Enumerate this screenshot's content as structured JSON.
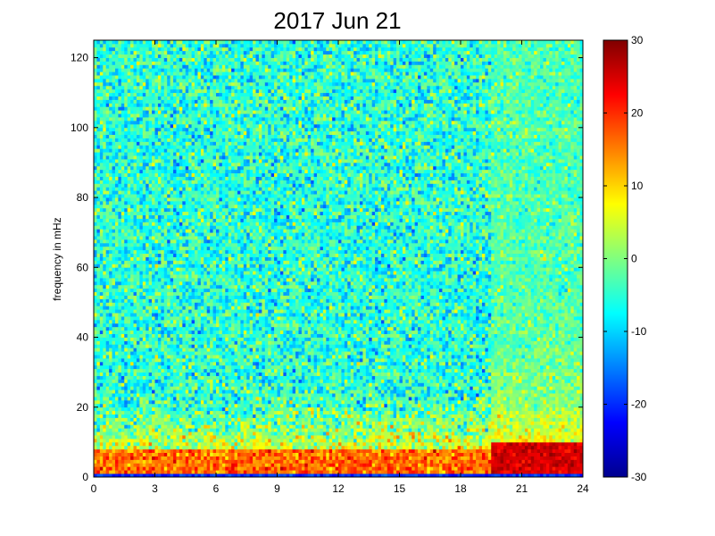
{
  "chart_data": {
    "type": "heatmap",
    "title": "2017 Jun 21",
    "xlabel": "",
    "ylabel": "frequency in mHz",
    "xlim": [
      0,
      24
    ],
    "ylim": [
      0,
      125
    ],
    "x_ticks": [
      "0",
      "3",
      "6",
      "9",
      "12",
      "15",
      "18",
      "21",
      "24"
    ],
    "y_ticks": [
      "0",
      "20",
      "40",
      "60",
      "80",
      "100",
      "120"
    ],
    "colorbar": {
      "colormap": "jet",
      "range": [
        -30,
        30
      ],
      "ticks": [
        "-30",
        "-20",
        "-10",
        "0",
        "10",
        "20",
        "30"
      ]
    },
    "features": {
      "background_level": -5,
      "low_frequency_band_mHz": [
        0,
        25
      ],
      "low_frequency_level": 12,
      "strong_activity_hours": [
        19.5,
        24
      ],
      "strong_activity_level": 28,
      "lowest_row_level": -20
    }
  }
}
